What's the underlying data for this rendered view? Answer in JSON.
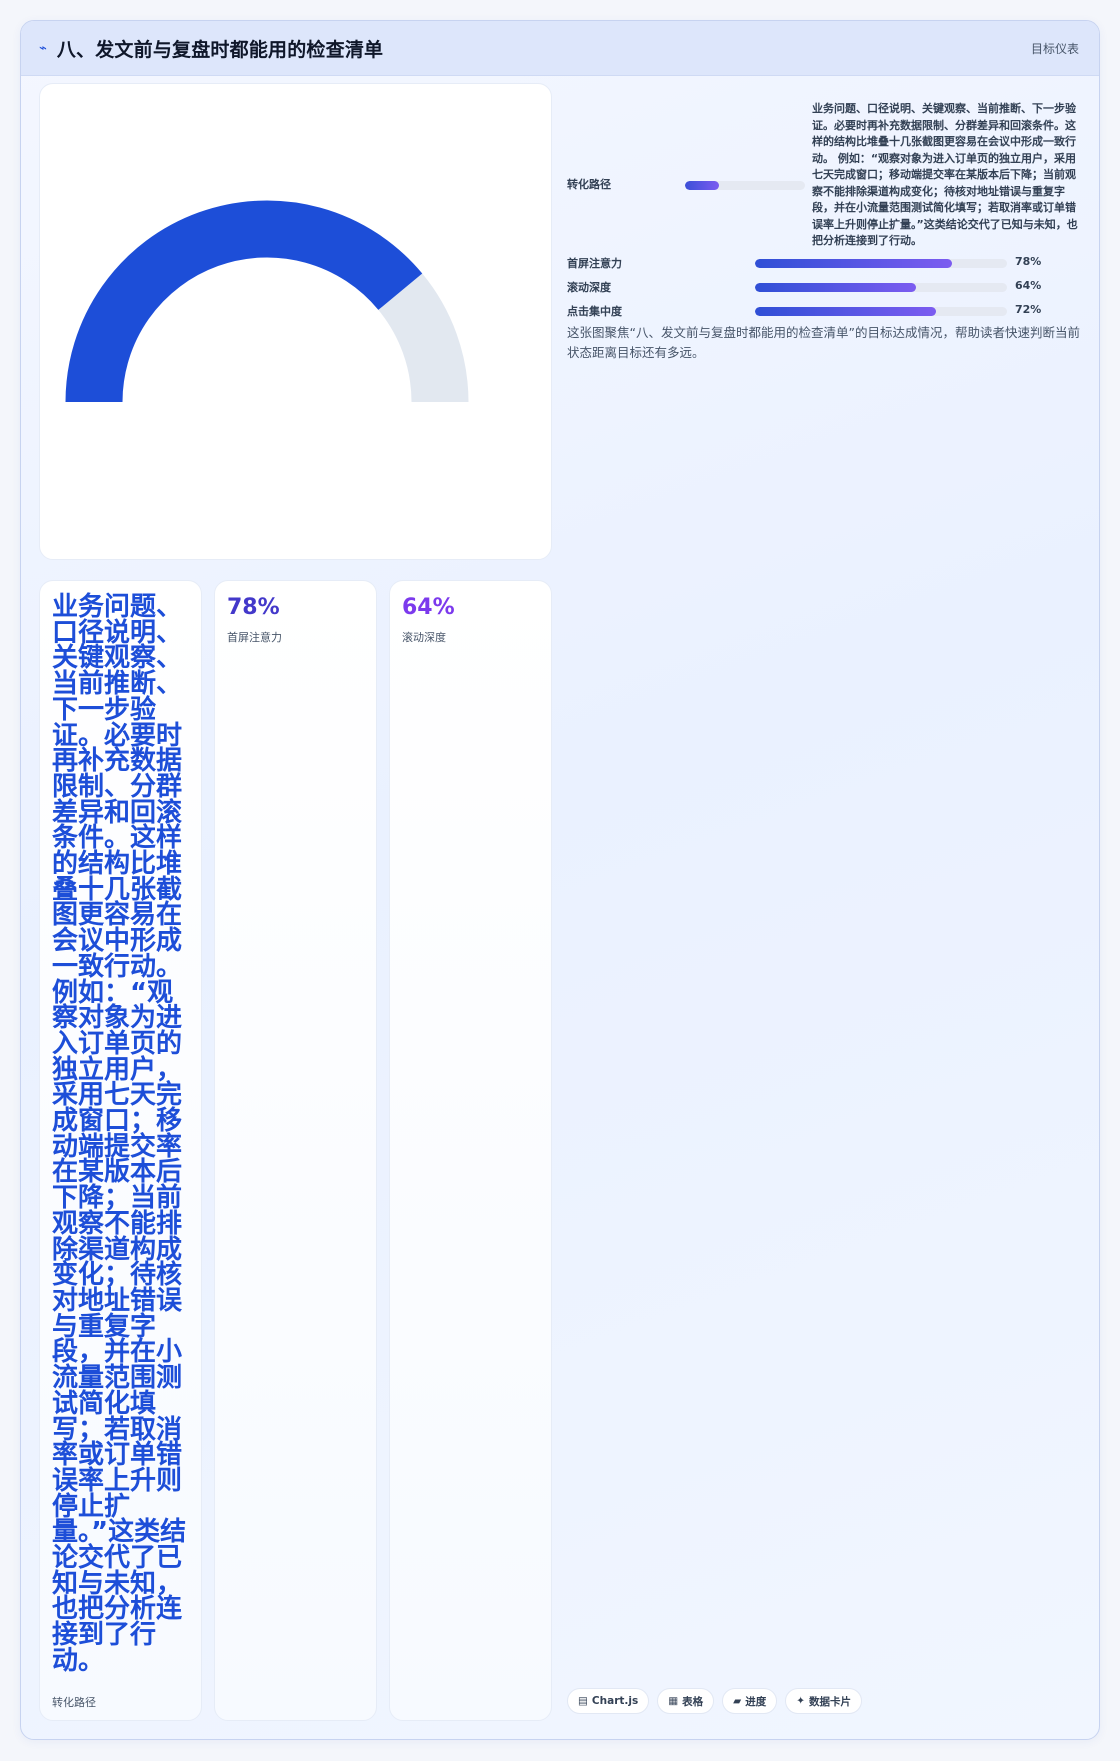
{
  "header": {
    "icon": "chart-line-icon",
    "icon_glyph": "⌁",
    "title": "八、发文前与复盘时都能用的检查清单",
    "tag": "目标仪表"
  },
  "gauge": {
    "value_percent": 78,
    "colors": {
      "fill": "#1d4ed8",
      "track": "#e2e8f0"
    }
  },
  "funnel": {
    "label": "转化路径",
    "fill_percent": 28,
    "text": "业务问题、口径说明、关键观察、当前推断、下一步验证。必要时再补充数据限制、分群差异和回滚条件。这样的结构比堆叠十几张截图更容易在会议中形成一致行动。 例如：“观察对象为进入订单页的独立用户，采用七天完成窗口；移动端提交率在某版本后下降；当前观察不能排除渠道构成变化；待核对地址错误与重复字段，并在小流量范围测试简化填写；若取消率或订单错误率上升则停止扩量。”这类结论交代了已知与未知，也把分析连接到了行动。"
  },
  "bars": [
    {
      "label": "首屏注意力",
      "value": 78,
      "value_text": "78%"
    },
    {
      "label": "滚动深度",
      "value": 64,
      "value_text": "64%"
    },
    {
      "label": "点击集中度",
      "value": 72,
      "value_text": "72%"
    }
  ],
  "caption": "这张图聚焦“八、发文前与复盘时都能用的检查清单”的目标达成情况，帮助读者快速判断当前状态距离目标还有多远。",
  "text_card": {
    "body": "业务问题、口径说明、关键观察、当前推断、下一步验证。必要时再补充数据限制、分群差异和回滚条件。这样的结构比堆叠十几张截图更容易在会议中形成一致行动。 例如：“观察对象为进入订单页的独立用户，采用七天完成窗口；移动端提交率在某版本后下降；当前观察不能排除渠道构成变化；待核对地址错误与重复字段，并在小流量范围测试简化填写；若取消率或订单错误率上升则停止扩量。”这类结论交代了已知与未知，也把分析连接到了行动。",
    "label": "转化路径"
  },
  "metrics": [
    {
      "value": "78%",
      "label": "首屏注意力",
      "color": "#4338ca"
    },
    {
      "value": "64%",
      "label": "滚动深度",
      "color": "#7c3aed"
    }
  ],
  "chips": [
    {
      "icon": "chart-icon",
      "glyph": "▤",
      "label": "Chart.js"
    },
    {
      "icon": "table-icon",
      "glyph": "▦",
      "label": "表格"
    },
    {
      "icon": "progress-icon",
      "glyph": "▰",
      "label": "进度"
    },
    {
      "icon": "sparkle-icon",
      "glyph": "✦",
      "label": "数据卡片"
    }
  ]
}
